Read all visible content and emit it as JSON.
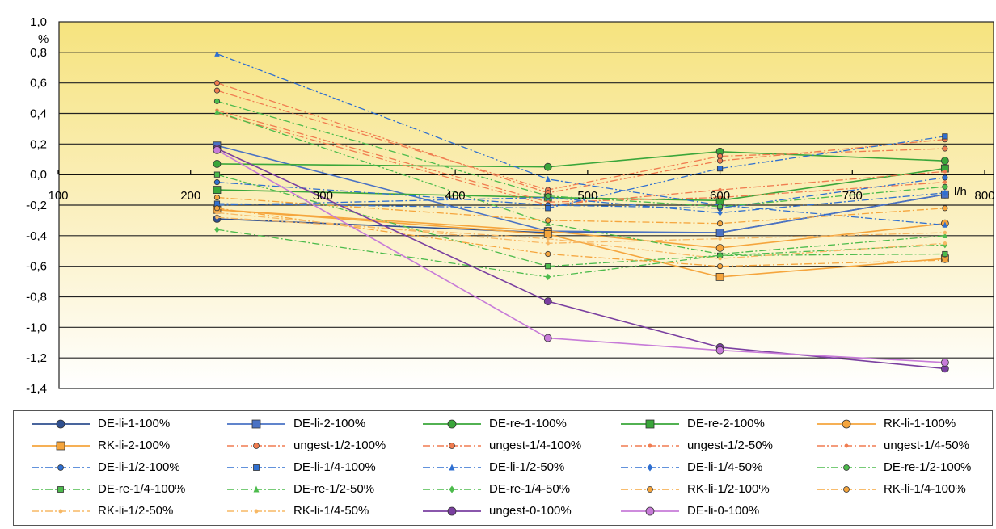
{
  "chart_data": {
    "type": "line",
    "x_unit": "l/h",
    "y_unit": "%",
    "xlim": [
      100,
      800
    ],
    "ylim": [
      -1.4,
      1.0
    ],
    "x_ticks": [
      "100",
      "200",
      "300",
      "400",
      "500",
      "600",
      "700",
      "800"
    ],
    "y_ticks": [
      "1,0",
      "0,8",
      "0,6",
      "0,4",
      "0,2",
      "0,0",
      "-0,2",
      "-0,4",
      "-0,6",
      "-0,8",
      "-1,0",
      "-1,2",
      "-1,4"
    ],
    "background": "yellow gradient fading to white at the bottom",
    "grid": true,
    "legend_position": "bottom",
    "x": [
      220,
      470,
      600,
      770
    ],
    "series": [
      {
        "name": "DE-li-1-100%",
        "values": [
          -0.29,
          -0.38,
          -0.38,
          -0.13
        ],
        "color": "#2f4f8f",
        "dash": "solid",
        "marker": "circle"
      },
      {
        "name": "DE-li-2-100%",
        "values": [
          0.19,
          -0.37,
          -0.38,
          -0.13
        ],
        "color": "#4a72c4",
        "dash": "solid",
        "marker": "square"
      },
      {
        "name": "DE-re-1-100%",
        "values": [
          0.07,
          0.05,
          0.15,
          0.09
        ],
        "color": "#3aa63a",
        "dash": "solid",
        "marker": "circle"
      },
      {
        "name": "DE-re-2-100%",
        "values": [
          -0.1,
          -0.15,
          -0.17,
          0.04
        ],
        "color": "#3aa63a",
        "dash": "solid",
        "marker": "square"
      },
      {
        "name": "RK-li-1-100%",
        "values": [
          -0.23,
          -0.37,
          -0.48,
          -0.32
        ],
        "color": "#f5a53d",
        "dash": "solid",
        "marker": "circle"
      },
      {
        "name": "RK-li-2-100%",
        "values": [
          -0.23,
          -0.39,
          -0.67,
          -0.55
        ],
        "color": "#f5a53d",
        "dash": "solid",
        "marker": "square"
      },
      {
        "name": "ungest-1/2-100%",
        "values": [
          0.55,
          -0.1,
          0.12,
          0.17
        ],
        "color": "#f07c50",
        "dash": "dashdot",
        "marker": "circle"
      },
      {
        "name": "ungest-1/4-100%",
        "values": [
          0.6,
          -0.12,
          0.09,
          0.23
        ],
        "color": "#f07c50",
        "dash": "dashdot",
        "marker": "circle"
      },
      {
        "name": "ungest-1/2-50%",
        "values": [
          0.4,
          -0.2,
          -0.1,
          0.02
        ],
        "color": "#f07c50",
        "dash": "dashdot",
        "marker": "star"
      },
      {
        "name": "ungest-1/4-50%",
        "values": [
          0.42,
          -0.18,
          -0.15,
          -0.05
        ],
        "color": "#f07c50",
        "dash": "dashdot",
        "marker": "star"
      },
      {
        "name": "DE-li-1/2-100%",
        "values": [
          -0.05,
          -0.2,
          -0.22,
          -0.02
        ],
        "color": "#2f6fd0",
        "dash": "dashdot",
        "marker": "circle"
      },
      {
        "name": "DE-li-1/4-100%",
        "values": [
          -0.19,
          -0.22,
          0.04,
          0.25
        ],
        "color": "#2f6fd0",
        "dash": "dashdot",
        "marker": "square"
      },
      {
        "name": "DE-li-1/2-50%",
        "values": [
          0.79,
          -0.03,
          -0.2,
          -0.33
        ],
        "color": "#2f6fd0",
        "dash": "dashdot",
        "marker": "triangle"
      },
      {
        "name": "DE-li-1/4-50%",
        "values": [
          -0.2,
          -0.15,
          -0.25,
          -0.12
        ],
        "color": "#2f6fd0",
        "dash": "dashdot",
        "marker": "diamond"
      },
      {
        "name": "DE-re-1/2-100%",
        "values": [
          0.48,
          -0.14,
          -0.21,
          -0.08
        ],
        "color": "#4cbb4c",
        "dash": "dashdot",
        "marker": "circle"
      },
      {
        "name": "DE-re-1/4-100%",
        "values": [
          0.0,
          -0.6,
          -0.53,
          -0.52
        ],
        "color": "#4cbb4c",
        "dash": "dashdot",
        "marker": "square"
      },
      {
        "name": "DE-re-1/2-50%",
        "values": [
          0.41,
          -0.32,
          -0.52,
          -0.4
        ],
        "color": "#4cbb4c",
        "dash": "dashdot",
        "marker": "triangle"
      },
      {
        "name": "DE-re-1/4-50%",
        "values": [
          -0.36,
          -0.67,
          -0.53,
          -0.46
        ],
        "color": "#4cbb4c",
        "dash": "dashdot",
        "marker": "diamond"
      },
      {
        "name": "RK-li-1/2-100%",
        "values": [
          -0.15,
          -0.3,
          -0.32,
          -0.22
        ],
        "color": "#f5a53d",
        "dash": "dashdot",
        "marker": "circle"
      },
      {
        "name": "RK-li-1/4-100%",
        "values": [
          -0.22,
          -0.52,
          -0.6,
          -0.56
        ],
        "color": "#f5a53d",
        "dash": "dashdot",
        "marker": "circle"
      },
      {
        "name": "RK-li-1/2-50%",
        "values": [
          -0.25,
          -0.45,
          -0.42,
          -0.38
        ],
        "color": "#f7b865",
        "dash": "dashdot",
        "marker": "star"
      },
      {
        "name": "RK-li-1/4-50%",
        "values": [
          -0.28,
          -0.42,
          -0.55,
          -0.45
        ],
        "color": "#f7b865",
        "dash": "dashdot",
        "marker": "star"
      },
      {
        "name": "ungest-0-100%",
        "values": [
          0.17,
          -0.83,
          -1.13,
          -1.27
        ],
        "color": "#7a3fa0",
        "dash": "solid",
        "marker": "circle"
      },
      {
        "name": "DE-li-0-100%",
        "values": [
          0.16,
          -1.07,
          -1.15,
          -1.23
        ],
        "color": "#c77bd8",
        "dash": "solid",
        "marker": "circle"
      }
    ]
  }
}
